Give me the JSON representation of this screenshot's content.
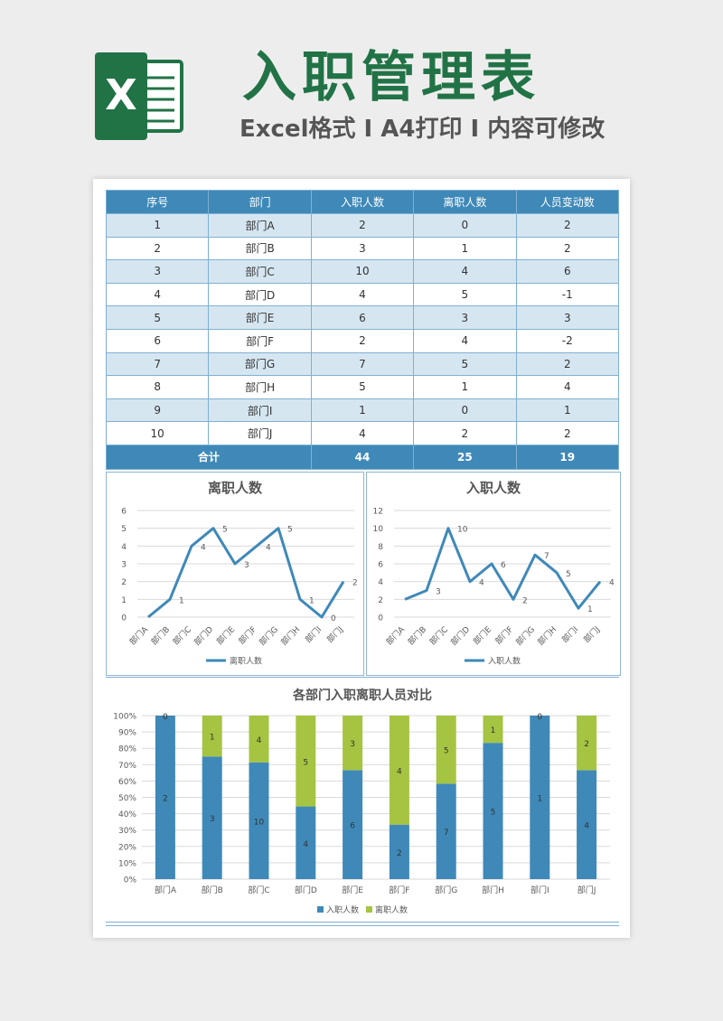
{
  "header": {
    "logo_letter": "X",
    "title": "入职管理表",
    "subtitle": "Excel格式 I A4打印 I 内容可修改"
  },
  "colors": {
    "green": "#217346",
    "blue": "#3f89b8",
    "lime": "#a5c442"
  },
  "table": {
    "headers": [
      "序号",
      "部门",
      "入职人数",
      "离职人数",
      "人员变动数"
    ],
    "rows": [
      [
        "1",
        "部门A",
        "2",
        "0",
        "2"
      ],
      [
        "2",
        "部门B",
        "3",
        "1",
        "2"
      ],
      [
        "3",
        "部门C",
        "10",
        "4",
        "6"
      ],
      [
        "4",
        "部门D",
        "4",
        "5",
        "-1"
      ],
      [
        "5",
        "部门E",
        "6",
        "3",
        "3"
      ],
      [
        "6",
        "部门F",
        "2",
        "4",
        "-2"
      ],
      [
        "7",
        "部门G",
        "7",
        "5",
        "2"
      ],
      [
        "8",
        "部门H",
        "5",
        "1",
        "4"
      ],
      [
        "9",
        "部门I",
        "1",
        "0",
        "1"
      ],
      [
        "10",
        "部门J",
        "4",
        "2",
        "2"
      ]
    ],
    "total": [
      "合计",
      "44",
      "25",
      "19"
    ]
  },
  "chart_data": [
    {
      "type": "line",
      "title": "离职人数",
      "categories": [
        "部门A",
        "部门B",
        "部门C",
        "部门D",
        "部门E",
        "部门F",
        "部门G",
        "部门H",
        "部门I",
        "部门J"
      ],
      "series": [
        {
          "name": "离职人数",
          "values": [
            0,
            1,
            4,
            5,
            3,
            4,
            5,
            1,
            0,
            2
          ]
        }
      ],
      "ylim": [
        0,
        6
      ],
      "yticks": [
        "0",
        "1",
        "2",
        "3",
        "4",
        "5",
        "6"
      ],
      "grid": true,
      "legend": "bottom"
    },
    {
      "type": "line",
      "title": "入职人数",
      "categories": [
        "部门A",
        "部门B",
        "部门C",
        "部门D",
        "部门E",
        "部门F",
        "部门G",
        "部门H",
        "部门I",
        "部门J"
      ],
      "series": [
        {
          "name": "入职人数",
          "values": [
            2,
            3,
            10,
            4,
            6,
            2,
            7,
            5,
            1,
            4
          ]
        }
      ],
      "ylim": [
        0,
        12
      ],
      "yticks": [
        "0",
        "2",
        "4",
        "6",
        "8",
        "10",
        "12"
      ],
      "grid": true,
      "legend": "bottom"
    },
    {
      "type": "bar",
      "stacked": "percent",
      "title": "各部门入职离职人员对比",
      "categories": [
        "部门A",
        "部门B",
        "部门C",
        "部门D",
        "部门E",
        "部门F",
        "部门G",
        "部门H",
        "部门I",
        "部门J"
      ],
      "series": [
        {
          "name": "入职人数",
          "values": [
            2,
            3,
            10,
            4,
            6,
            2,
            7,
            5,
            1,
            4
          ]
        },
        {
          "name": "离职人数",
          "values": [
            0,
            1,
            4,
            5,
            3,
            4,
            5,
            1,
            0,
            2
          ]
        }
      ],
      "ylim": [
        0,
        100
      ],
      "yticks": [
        "0%",
        "10%",
        "20%",
        "30%",
        "40%",
        "50%",
        "60%",
        "70%",
        "80%",
        "90%",
        "100%"
      ],
      "grid": true,
      "legend": "bottom"
    }
  ]
}
